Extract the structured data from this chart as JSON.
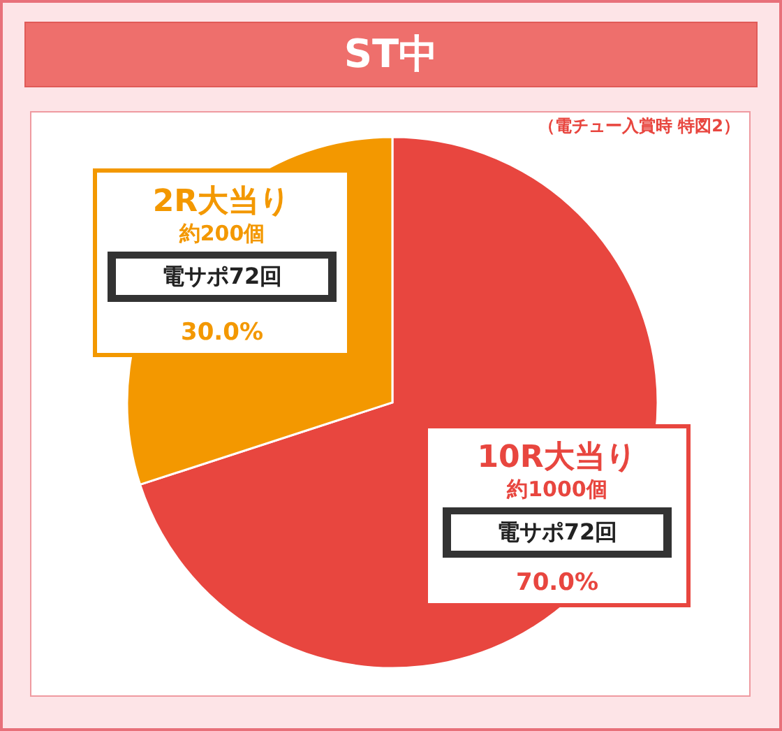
{
  "chart_data": {
    "type": "pie",
    "title": "ST中",
    "subtitle": "（電チュー入賞時 特図2）",
    "categories": [
      "10R大当り",
      "2R大当り"
    ],
    "values": [
      70,
      30
    ],
    "colors": [
      "#e8463f",
      "#f39800"
    ],
    "value_labels": [
      "70.0%",
      "30.0%"
    ],
    "annotations": [
      "約1000個",
      "電サポ72回",
      "約200個",
      "電サポ72回"
    ]
  }
}
